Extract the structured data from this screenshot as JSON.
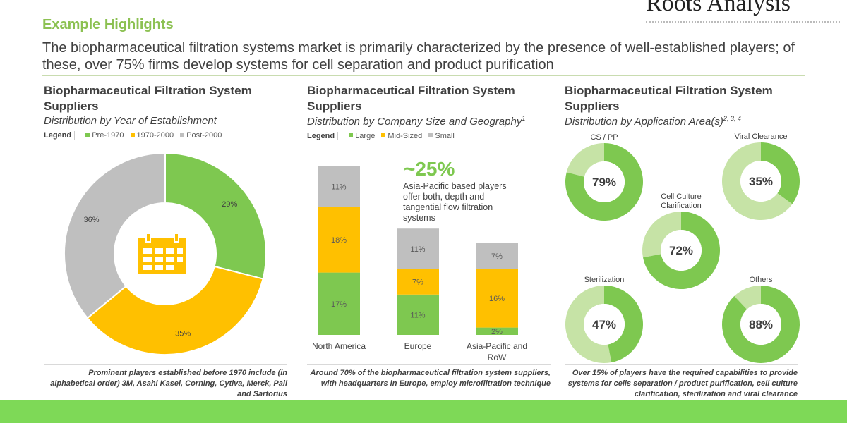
{
  "header": {
    "logo_text": "Roots Analysis",
    "section_title": "Example Highlights",
    "summary": "The biopharmaceutical filtration systems market is primarily characterized by the presence of well-established players; of these, over 75% firms develop systems for cell separation and product purification"
  },
  "colors": {
    "green": "#7ec850",
    "yellow": "#ffc000",
    "gray": "#bfbfbf",
    "light_green": "#c6e3a6",
    "footer": "#7ed957"
  },
  "legend_label": "Legend",
  "icons": {
    "donut_center": "calendar-icon"
  },
  "chart_data": [
    {
      "type": "pie",
      "variant": "donut",
      "title": "Biopharmaceutical Filtration System Suppliers",
      "subtitle": "Distribution by Year of Establishment",
      "legend": [
        "Pre-1970",
        "1970-2000",
        "Post-2000"
      ],
      "labels": [
        "29%",
        "35%",
        "36%"
      ],
      "values": [
        29,
        35,
        36
      ],
      "colors": [
        "#7ec850",
        "#ffc000",
        "#bfbfbf"
      ],
      "note": "Prominent players established  before 1970 include (in alphabetical order) 3M, Asahi Kasei, Corning, Cytiva, Merck, Pall and Sartorius"
    },
    {
      "type": "bar",
      "stacked": true,
      "title": "Biopharmaceutical Filtration System Suppliers",
      "subtitle": "Distribution by Company Size and Geography",
      "subtitle_sup": "1",
      "categories": [
        "North America",
        "Europe",
        "Asia-Pacific and RoW"
      ],
      "series": [
        {
          "name": "Large",
          "values": [
            17,
            11,
            2
          ],
          "color": "#7ec850"
        },
        {
          "name": "Mid-Sized",
          "values": [
            18,
            7,
            16
          ],
          "color": "#ffc000"
        },
        {
          "name": "Small",
          "values": [
            11,
            11,
            7
          ],
          "color": "#bfbfbf"
        }
      ],
      "callout": {
        "value": "~25%",
        "text": "Asia-Pacific based players offer both, depth and tangential flow filtration systems"
      },
      "note": "Around 70% of the biopharmaceutical filtration system suppliers, with headquarters in Europe, employ microfiltration technique"
    },
    {
      "type": "pie",
      "variant": "donut-multiples",
      "title": "Biopharmaceutical Filtration System Suppliers",
      "subtitle": "Distribution by Application Area(s)",
      "subtitle_sup": "2, 3, 4",
      "items": [
        {
          "label": "CS / PP",
          "value": 79
        },
        {
          "label": "Viral Clearance",
          "value": 35
        },
        {
          "label": "Cell Culture Clarification",
          "value": 72
        },
        {
          "label": "Sterilization",
          "value": 47
        },
        {
          "label": "Others",
          "value": 88
        }
      ],
      "note": "Over 15% of  players have the required capabilities to provide systems  for cells separation  / product purification, cell culture clarification, sterilization and viral clearance"
    }
  ]
}
